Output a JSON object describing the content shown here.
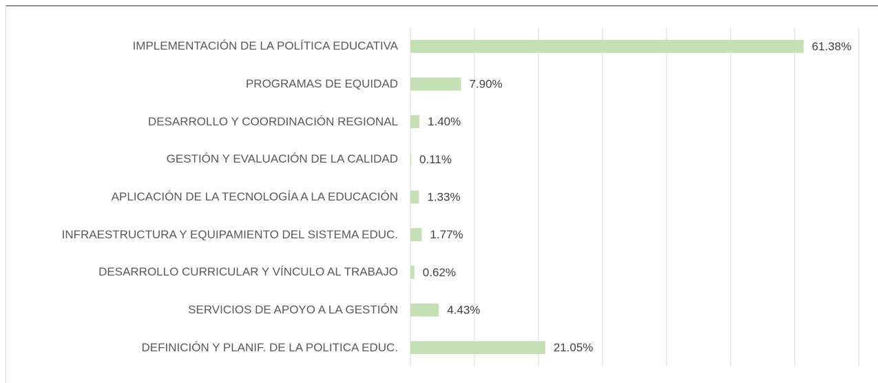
{
  "chart_data": {
    "type": "bar",
    "orientation": "horizontal",
    "categories": [
      "IMPLEMENTACIÓN DE LA POLÍTICA EDUCATIVA",
      "PROGRAMAS DE EQUIDAD",
      "DESARROLLO Y COORDINACIÓN REGIONAL",
      "GESTIÓN Y EVALUACIÓN DE LA CALIDAD",
      "APLICACIÓN DE LA TECNOLOGÍA A LA EDUCACIÓN",
      "INFRAESTRUCTURA Y EQUIPAMIENTO DEL SISTEMA EDUC.",
      "DESARROLLO CURRICULAR Y VÍNCULO AL TRABAJO",
      "SERVICIOS DE APOYO A LA GESTIÓN",
      "DEFINICIÓN Y PLANIF. DE LA POLITICA EDUC."
    ],
    "values": [
      61.38,
      7.9,
      1.4,
      0.11,
      1.33,
      1.77,
      0.62,
      4.43,
      21.05
    ],
    "value_labels": [
      "61.38%",
      "7.90%",
      "1.40%",
      "0.11%",
      "1.33%",
      "1.77%",
      "0.62%",
      "4.43%",
      "21.05%"
    ],
    "color": "#c5e0b4",
    "xlim": [
      0,
      70
    ],
    "xticks": [
      0,
      10,
      20,
      30,
      40,
      50,
      60,
      70
    ],
    "grid": true
  }
}
